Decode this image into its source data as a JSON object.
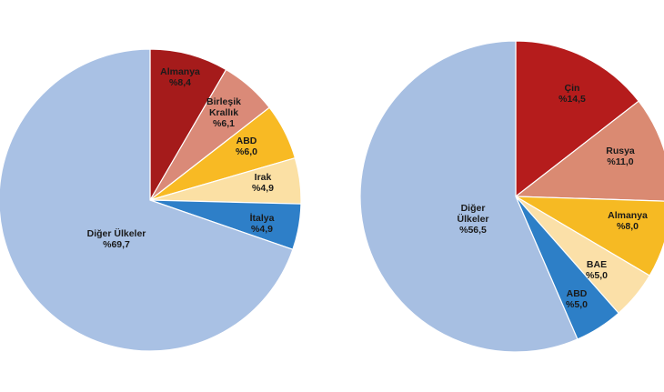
{
  "chart_data": [
    {
      "type": "pie",
      "title": "",
      "categories": [
        "Almanya",
        "Birleşik Krallık",
        "ABD",
        "Irak",
        "İtalya",
        "Diğer Ülkeler"
      ],
      "values": [
        8.4,
        6.1,
        6.0,
        4.9,
        4.9,
        69.7
      ],
      "label_lines": [
        [
          "Almanya",
          "%8,4"
        ],
        [
          "Birleşik",
          "Krallık",
          "%6,1"
        ],
        [
          "ABD",
          "%6,0"
        ],
        [
          "Irak",
          "%4,9"
        ],
        [
          "İtalya",
          "%4,9"
        ],
        [
          "Diğer Ülkeler",
          "%69,7"
        ]
      ],
      "colors": [
        "#a51b1b",
        "#da8a78",
        "#f8ba24",
        "#fbe0a4",
        "#2e7fc8",
        "#a9c1e4"
      ],
      "start_angle_deg": 0,
      "direction": "clockwise",
      "legend": "none"
    },
    {
      "type": "pie",
      "title": "",
      "categories": [
        "Çin",
        "Rusya",
        "Almanya",
        "BAE",
        "ABD",
        "Diğer Ülkeler"
      ],
      "values": [
        14.5,
        11.0,
        8.0,
        5.0,
        5.0,
        56.5
      ],
      "label_lines": [
        [
          "Çin",
          "%14,5"
        ],
        [
          "Rusya",
          "%11,0"
        ],
        [
          "Almanya",
          "%8,0"
        ],
        [
          "BAE",
          "%5,0"
        ],
        [
          "ABD",
          "%5,0"
        ],
        [
          "Diğer",
          "Ülkeler",
          "%56,5"
        ]
      ],
      "colors": [
        "#b51c1c",
        "#da8a72",
        "#f6ba23",
        "#fbe0a8",
        "#2d7fc7",
        "#a7bfe2"
      ],
      "start_angle_deg": 0,
      "direction": "clockwise",
      "legend": "none"
    }
  ]
}
